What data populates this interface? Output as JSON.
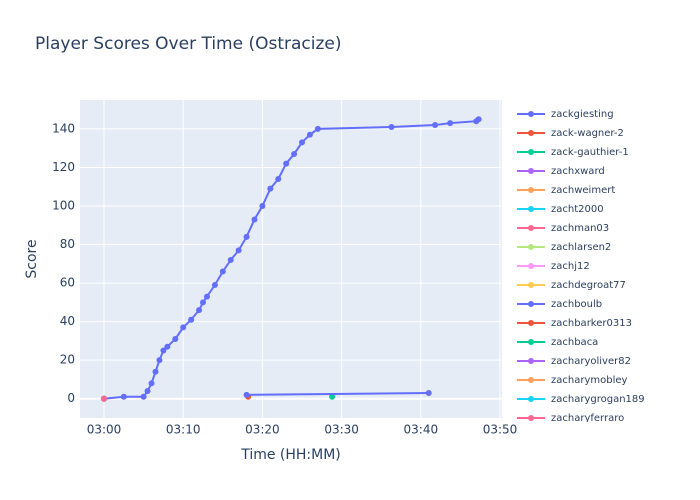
{
  "chart_data": {
    "type": "line",
    "title": "Player Scores Over Time (Ostracize)",
    "x_label": "Time (HH:MM)",
    "y_label": "Score",
    "xlim": [
      -3.03,
      50.25
    ],
    "ylim": [
      -10,
      155
    ],
    "xticks": [
      {
        "value": 0,
        "label": "03:00"
      },
      {
        "value": 10,
        "label": "03:10"
      },
      {
        "value": 20,
        "label": "03:20"
      },
      {
        "value": 30,
        "label": "03:30"
      },
      {
        "value": 40,
        "label": "03:40"
      },
      {
        "value": 50,
        "label": "03:50"
      }
    ],
    "yticks": [
      0,
      20,
      40,
      60,
      80,
      100,
      120,
      140
    ],
    "grid": true,
    "legend": "right",
    "series": [
      {
        "name": "zackgiesting",
        "color": "#636efa",
        "x": [
          0,
          2.5,
          5,
          5.5,
          6,
          6.5,
          7,
          7.5,
          8,
          9,
          10,
          11,
          12,
          12.5,
          13,
          14,
          15,
          16,
          17,
          18,
          19,
          20,
          21,
          22,
          23,
          24,
          25,
          26,
          27,
          36.3,
          41.8,
          43.7,
          47,
          47.3
        ],
        "values": [
          0,
          1,
          1,
          4,
          8,
          14,
          20,
          25,
          27,
          31,
          37,
          41,
          46,
          50,
          53,
          59,
          66,
          72,
          77,
          84,
          93,
          100,
          109,
          114,
          122,
          127,
          133,
          137,
          140,
          141,
          142,
          143,
          144,
          145
        ]
      },
      {
        "name": "zack-wagner-2",
        "color": "#EF553B",
        "x": [
          18.2
        ],
        "values": [
          1
        ]
      },
      {
        "name": "zack-gauthier-1",
        "color": "#00cc96",
        "x": [
          28.8
        ],
        "values": [
          1
        ]
      },
      {
        "name": "zachxward",
        "color": "#ab63fa",
        "x": [
          0
        ],
        "values": [
          0
        ]
      },
      {
        "name": "zachweimert",
        "color": "#FFA15A",
        "x": [
          0
        ],
        "values": [
          0
        ]
      },
      {
        "name": "zacht2000",
        "color": "#19d3f3",
        "x": [
          0
        ],
        "values": [
          0
        ]
      },
      {
        "name": "zachman03",
        "color": "#FF6692",
        "x": [
          0
        ],
        "values": [
          0
        ]
      },
      {
        "name": "zachlarsen2",
        "color": "#B6E880",
        "x": [
          0
        ],
        "values": [
          0
        ]
      },
      {
        "name": "zachj12",
        "color": "#FF97FF",
        "x": [
          0
        ],
        "values": [
          0
        ]
      },
      {
        "name": "zachdegroat77",
        "color": "#FECB52",
        "x": [
          0
        ],
        "values": [
          0
        ]
      },
      {
        "name": "zachboulb",
        "color": "#636efa",
        "x": [
          18,
          41
        ],
        "values": [
          2,
          3
        ]
      },
      {
        "name": "zachbarker0313",
        "color": "#EF553B",
        "x": [
          0
        ],
        "values": [
          0
        ]
      },
      {
        "name": "zachbaca",
        "color": "#00cc96",
        "x": [
          0
        ],
        "values": [
          0
        ]
      },
      {
        "name": "zacharyoliver82",
        "color": "#ab63fa",
        "x": [
          0
        ],
        "values": [
          0
        ]
      },
      {
        "name": "zacharymobley",
        "color": "#FFA15A",
        "x": [
          0
        ],
        "values": [
          0
        ]
      },
      {
        "name": "zacharygrogan189",
        "color": "#19d3f3",
        "x": [
          0
        ],
        "values": [
          0
        ]
      },
      {
        "name": "zacharyferraro",
        "color": "#FF6692",
        "x": [
          0
        ],
        "values": [
          0
        ]
      }
    ]
  }
}
